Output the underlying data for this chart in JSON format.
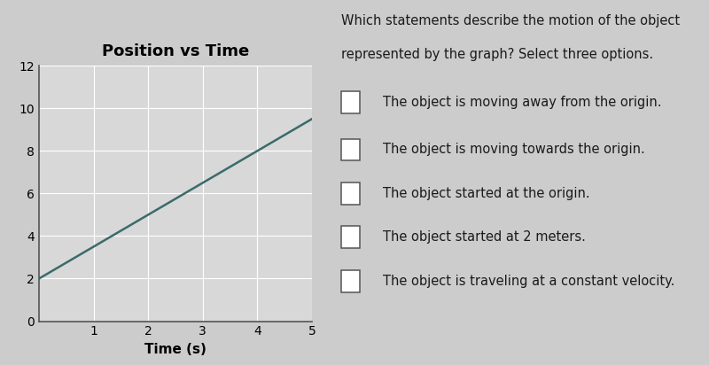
{
  "title": "Position vs Time",
  "xlabel": "Time (s)",
  "x_data": [
    0,
    5
  ],
  "y_data": [
    2,
    9.5
  ],
  "xlim": [
    0,
    5
  ],
  "ylim": [
    0,
    12
  ],
  "xticks": [
    1,
    2,
    3,
    4,
    5
  ],
  "yticks": [
    0,
    2,
    4,
    6,
    8,
    10,
    12
  ],
  "ytick_labels": [
    "0",
    "2",
    "4",
    "6",
    "8",
    "10",
    "12"
  ],
  "line_color": "#3a6b6b",
  "background_color": "#cccccc",
  "plot_bg_color": "#d8d8d8",
  "title_fontsize": 13,
  "title_fontweight": "bold",
  "xlabel_fontsize": 11,
  "xlabel_fontweight": "bold",
  "tick_fontsize": 10,
  "question_text_line1": "Which statements describe the motion of the object",
  "question_text_line2": "represented by the graph? Select three options.",
  "options": [
    "The object is moving away from the origin.",
    "The object is moving towards the origin.",
    "The object started at the origin.",
    "The object started at 2 meters.",
    "The object is traveling at a constant velocity."
  ],
  "option_text_color": "#1a1a1a",
  "option_fontsize": 10.5,
  "question_fontsize": 10.5,
  "grid_color": "#ffffff",
  "spine_color": "#555555"
}
